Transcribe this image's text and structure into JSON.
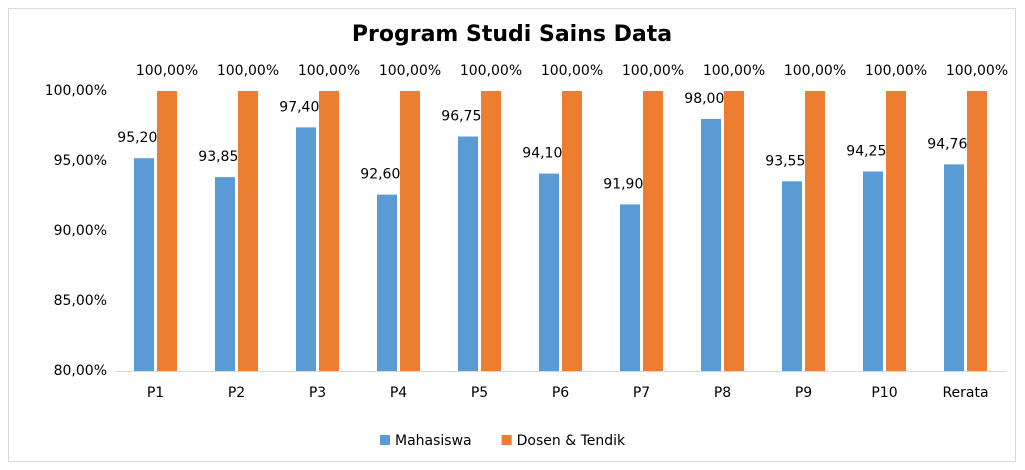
{
  "chart_data": {
    "type": "bar",
    "title": "Program Studi Sains Data",
    "categories": [
      "P1",
      "P2",
      "P3",
      "P4",
      "P5",
      "P6",
      "P7",
      "P8",
      "P9",
      "P10",
      "Rerata"
    ],
    "series": [
      {
        "name": "Mahasiswa",
        "color": "#5b9bd5",
        "values": [
          95.2,
          93.85,
          97.4,
          92.6,
          96.75,
          94.1,
          91.9,
          98.0,
          93.55,
          94.25,
          94.76
        ],
        "value_labels": [
          "95,20%",
          "93,85%",
          "97,40%",
          "92,60%",
          "96,75%",
          "94,10%",
          "91,90%",
          "98,00%",
          "93,55%",
          "94,25%",
          "94,76%"
        ]
      },
      {
        "name": "Dosen & Tendik",
        "color": "#ed7d31",
        "values": [
          100,
          100,
          100,
          100,
          100,
          100,
          100,
          100,
          100,
          100,
          100
        ],
        "value_labels": [
          "100,00%",
          "100,00%",
          "100,00%",
          "100,00%",
          "100,00%",
          "100,00%",
          "100,00%",
          "100,00%",
          "100,00%",
          "100,00%",
          "100,00%"
        ]
      }
    ],
    "ylim": [
      80,
      100
    ],
    "yticks": [
      {
        "value": 80,
        "label": "80,00%"
      },
      {
        "value": 85,
        "label": "85,00%"
      },
      {
        "value": 90,
        "label": "90,00%"
      },
      {
        "value": 95,
        "label": "95,00%"
      },
      {
        "value": 100,
        "label": "100,00%"
      }
    ],
    "grid": false,
    "legend": "bottom"
  }
}
